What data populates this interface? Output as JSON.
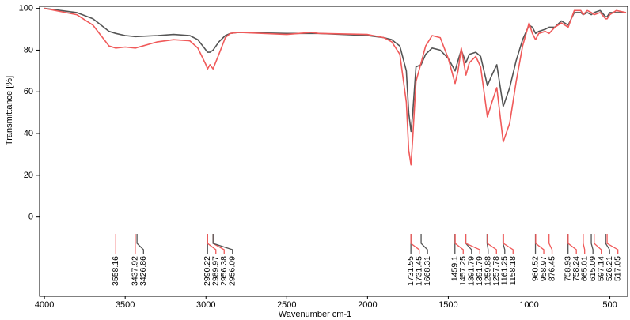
{
  "chart_data": {
    "type": "line",
    "xlabel": "Wavenumber cm-1",
    "ylabel": "Transmittance [%]",
    "x": [
      4000,
      3800,
      3700,
      3600,
      3558,
      3500,
      3437,
      3300,
      3200,
      3100,
      3050,
      3000,
      2990,
      2975,
      2956,
      2920,
      2880,
      2850,
      2800,
      2500,
      2350,
      2300,
      2000,
      1900,
      1850,
      1800,
      1760,
      1745,
      1731,
      1720,
      1700,
      1668,
      1640,
      1600,
      1550,
      1500,
      1458,
      1440,
      1420,
      1391,
      1370,
      1330,
      1300,
      1258,
      1230,
      1200,
      1160,
      1120,
      1080,
      1040,
      1000,
      980,
      960,
      940,
      900,
      876,
      840,
      800,
      758,
      720,
      680,
      665,
      640,
      615,
      597,
      560,
      526,
      517,
      500,
      460,
      400
    ],
    "series": [
      {
        "color": "#555555",
        "values": [
          100,
          98,
          95,
          89,
          88,
          87,
          86.5,
          87,
          87.5,
          87,
          85,
          80,
          79,
          79,
          80,
          84,
          87,
          88,
          88.5,
          88,
          88,
          88,
          87,
          86,
          85,
          82,
          70,
          50,
          41,
          50,
          72,
          73,
          78,
          81,
          80,
          76,
          70,
          75,
          80,
          74,
          78,
          79,
          77,
          63,
          68,
          73,
          53,
          62,
          75,
          85,
          92,
          91,
          88,
          89,
          90,
          91,
          91,
          94,
          92,
          98,
          98,
          97,
          98,
          97,
          98,
          99,
          96,
          96,
          98,
          98,
          98
        ]
      },
      {
        "color": "#f05a5a",
        "values": [
          100,
          97,
          92,
          82,
          81,
          81.5,
          81,
          84,
          85,
          84.5,
          81,
          73,
          71,
          73,
          71,
          78,
          86,
          88,
          88.5,
          87.5,
          88.5,
          88,
          87.5,
          86,
          84,
          78,
          55,
          32,
          25,
          38,
          65,
          74,
          82,
          87,
          86,
          76,
          64,
          70,
          81,
          68,
          74,
          77,
          72,
          48,
          55,
          62,
          36,
          45,
          65,
          82,
          93,
          88,
          85,
          88,
          89,
          88,
          91,
          93,
          91,
          99,
          99,
          97,
          99,
          98,
          97,
          98,
          95,
          95,
          97,
          99,
          98
        ]
      }
    ],
    "peaks": [
      {
        "x": 3558.16,
        "color": "#f05a5a"
      },
      {
        "x": 3437.92,
        "color": "#f05a5a"
      },
      {
        "x": 3426.86,
        "color": "#555555"
      },
      {
        "x": 2990.22,
        "color": "#555555"
      },
      {
        "x": 2989.97,
        "color": "#f05a5a"
      },
      {
        "x": 2956.38,
        "color": "#f05a5a"
      },
      {
        "x": 2956.09,
        "color": "#555555"
      },
      {
        "x": 1731.55,
        "color": "#555555"
      },
      {
        "x": 1731.45,
        "color": "#f05a5a"
      },
      {
        "x": 1668.31,
        "color": "#555555"
      },
      {
        "x": 1459.1,
        "color": "#555555"
      },
      {
        "x": 1457.25,
        "color": "#f05a5a"
      },
      {
        "x": 1391.79,
        "color": "#555555"
      },
      {
        "x": 1391.79,
        "color": "#f05a5a"
      },
      {
        "x": 1259.88,
        "color": "#555555"
      },
      {
        "x": 1257.78,
        "color": "#f05a5a"
      },
      {
        "x": 1161.25,
        "color": "#555555"
      },
      {
        "x": 1158.18,
        "color": "#f05a5a"
      },
      {
        "x": 960.52,
        "color": "#555555"
      },
      {
        "x": 958.97,
        "color": "#f05a5a"
      },
      {
        "x": 876.45,
        "color": "#f05a5a"
      },
      {
        "x": 758.93,
        "color": "#555555"
      },
      {
        "x": 758.24,
        "color": "#f05a5a"
      },
      {
        "x": 665.01,
        "color": "#f05a5a"
      },
      {
        "x": 615.09,
        "color": "#555555"
      },
      {
        "x": 597.14,
        "color": "#f05a5a"
      },
      {
        "x": 526.21,
        "color": "#555555"
      },
      {
        "x": 517.05,
        "color": "#f05a5a"
      }
    ],
    "xlim": [
      4030,
      390
    ],
    "xticks": [
      4000,
      3500,
      3000,
      2500,
      2000,
      1500,
      1000,
      500
    ],
    "ylim": [
      -38,
      101
    ],
    "yticks": [
      0,
      20,
      40,
      60,
      80,
      100
    ]
  }
}
